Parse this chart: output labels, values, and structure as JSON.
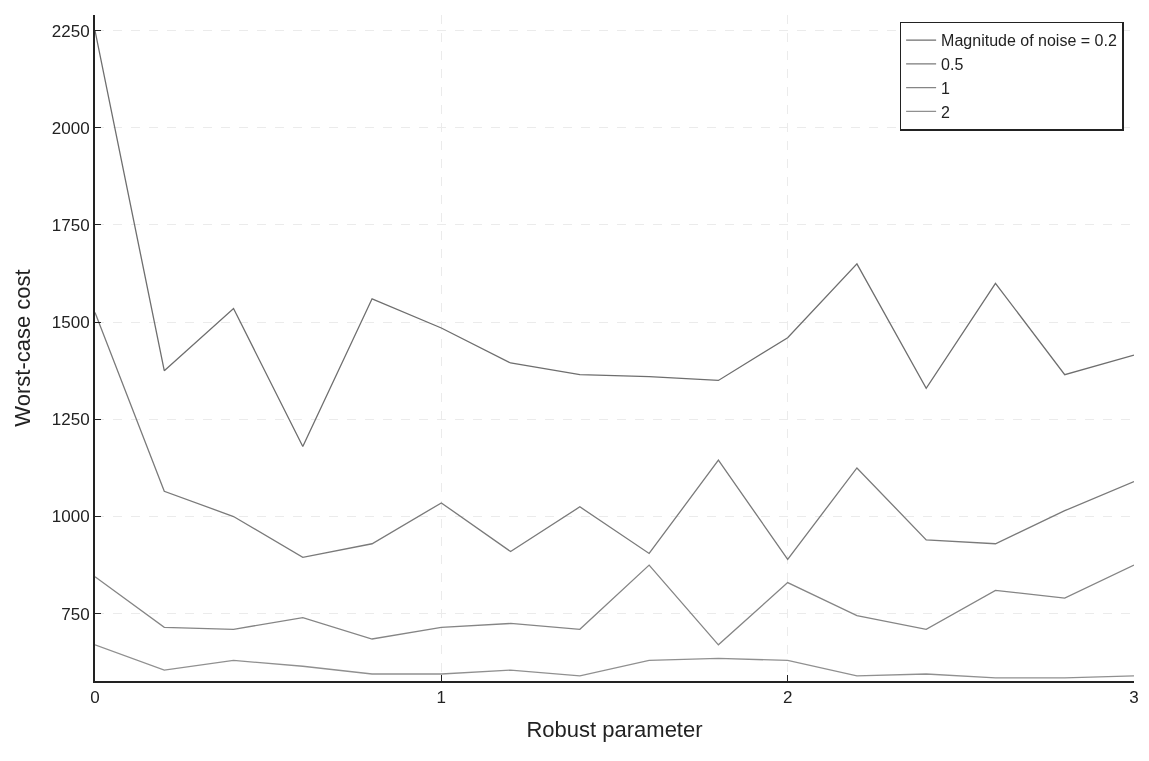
{
  "chart_data": {
    "type": "line",
    "xlabel": "Robust parameter",
    "ylabel": "Worst-case cost",
    "x": [
      0,
      0.2,
      0.4,
      0.6,
      0.8,
      1.0,
      1.2,
      1.4,
      1.6,
      1.8,
      2.0,
      2.2,
      2.4,
      2.6,
      2.8,
      3.0
    ],
    "series": [
      {
        "name": "Magnitude of noise = 0.2",
        "color": "#6e6e6e",
        "values": [
          2250,
          1375,
          1535,
          1180,
          1560,
          1485,
          1395,
          1365,
          1360,
          1350,
          1460,
          1650,
          1330,
          1600,
          1365,
          1415
        ]
      },
      {
        "name": "0.5",
        "color": "#7a7a7a",
        "values": [
          1525,
          1065,
          1000,
          895,
          930,
          1035,
          910,
          1025,
          905,
          1145,
          890,
          1125,
          940,
          930,
          1015,
          1090
        ]
      },
      {
        "name": "1",
        "color": "#858585",
        "values": [
          845,
          715,
          710,
          740,
          685,
          715,
          725,
          710,
          875,
          670,
          830,
          745,
          710,
          810,
          790,
          875
        ]
      },
      {
        "name": "2",
        "color": "#909090",
        "values": [
          670,
          605,
          630,
          615,
          595,
          595,
          605,
          590,
          630,
          635,
          630,
          590,
          595,
          585,
          585,
          590
        ]
      }
    ],
    "xlim": [
      0,
      3
    ],
    "xticks": [
      0,
      1,
      2,
      3
    ],
    "ylim": [
      577,
      2290
    ],
    "yticks": [
      750,
      1000,
      1250,
      1500,
      1750,
      2000,
      2250
    ],
    "grid": true,
    "legend": "top right",
    "marker": "none",
    "line_style": "solid"
  }
}
